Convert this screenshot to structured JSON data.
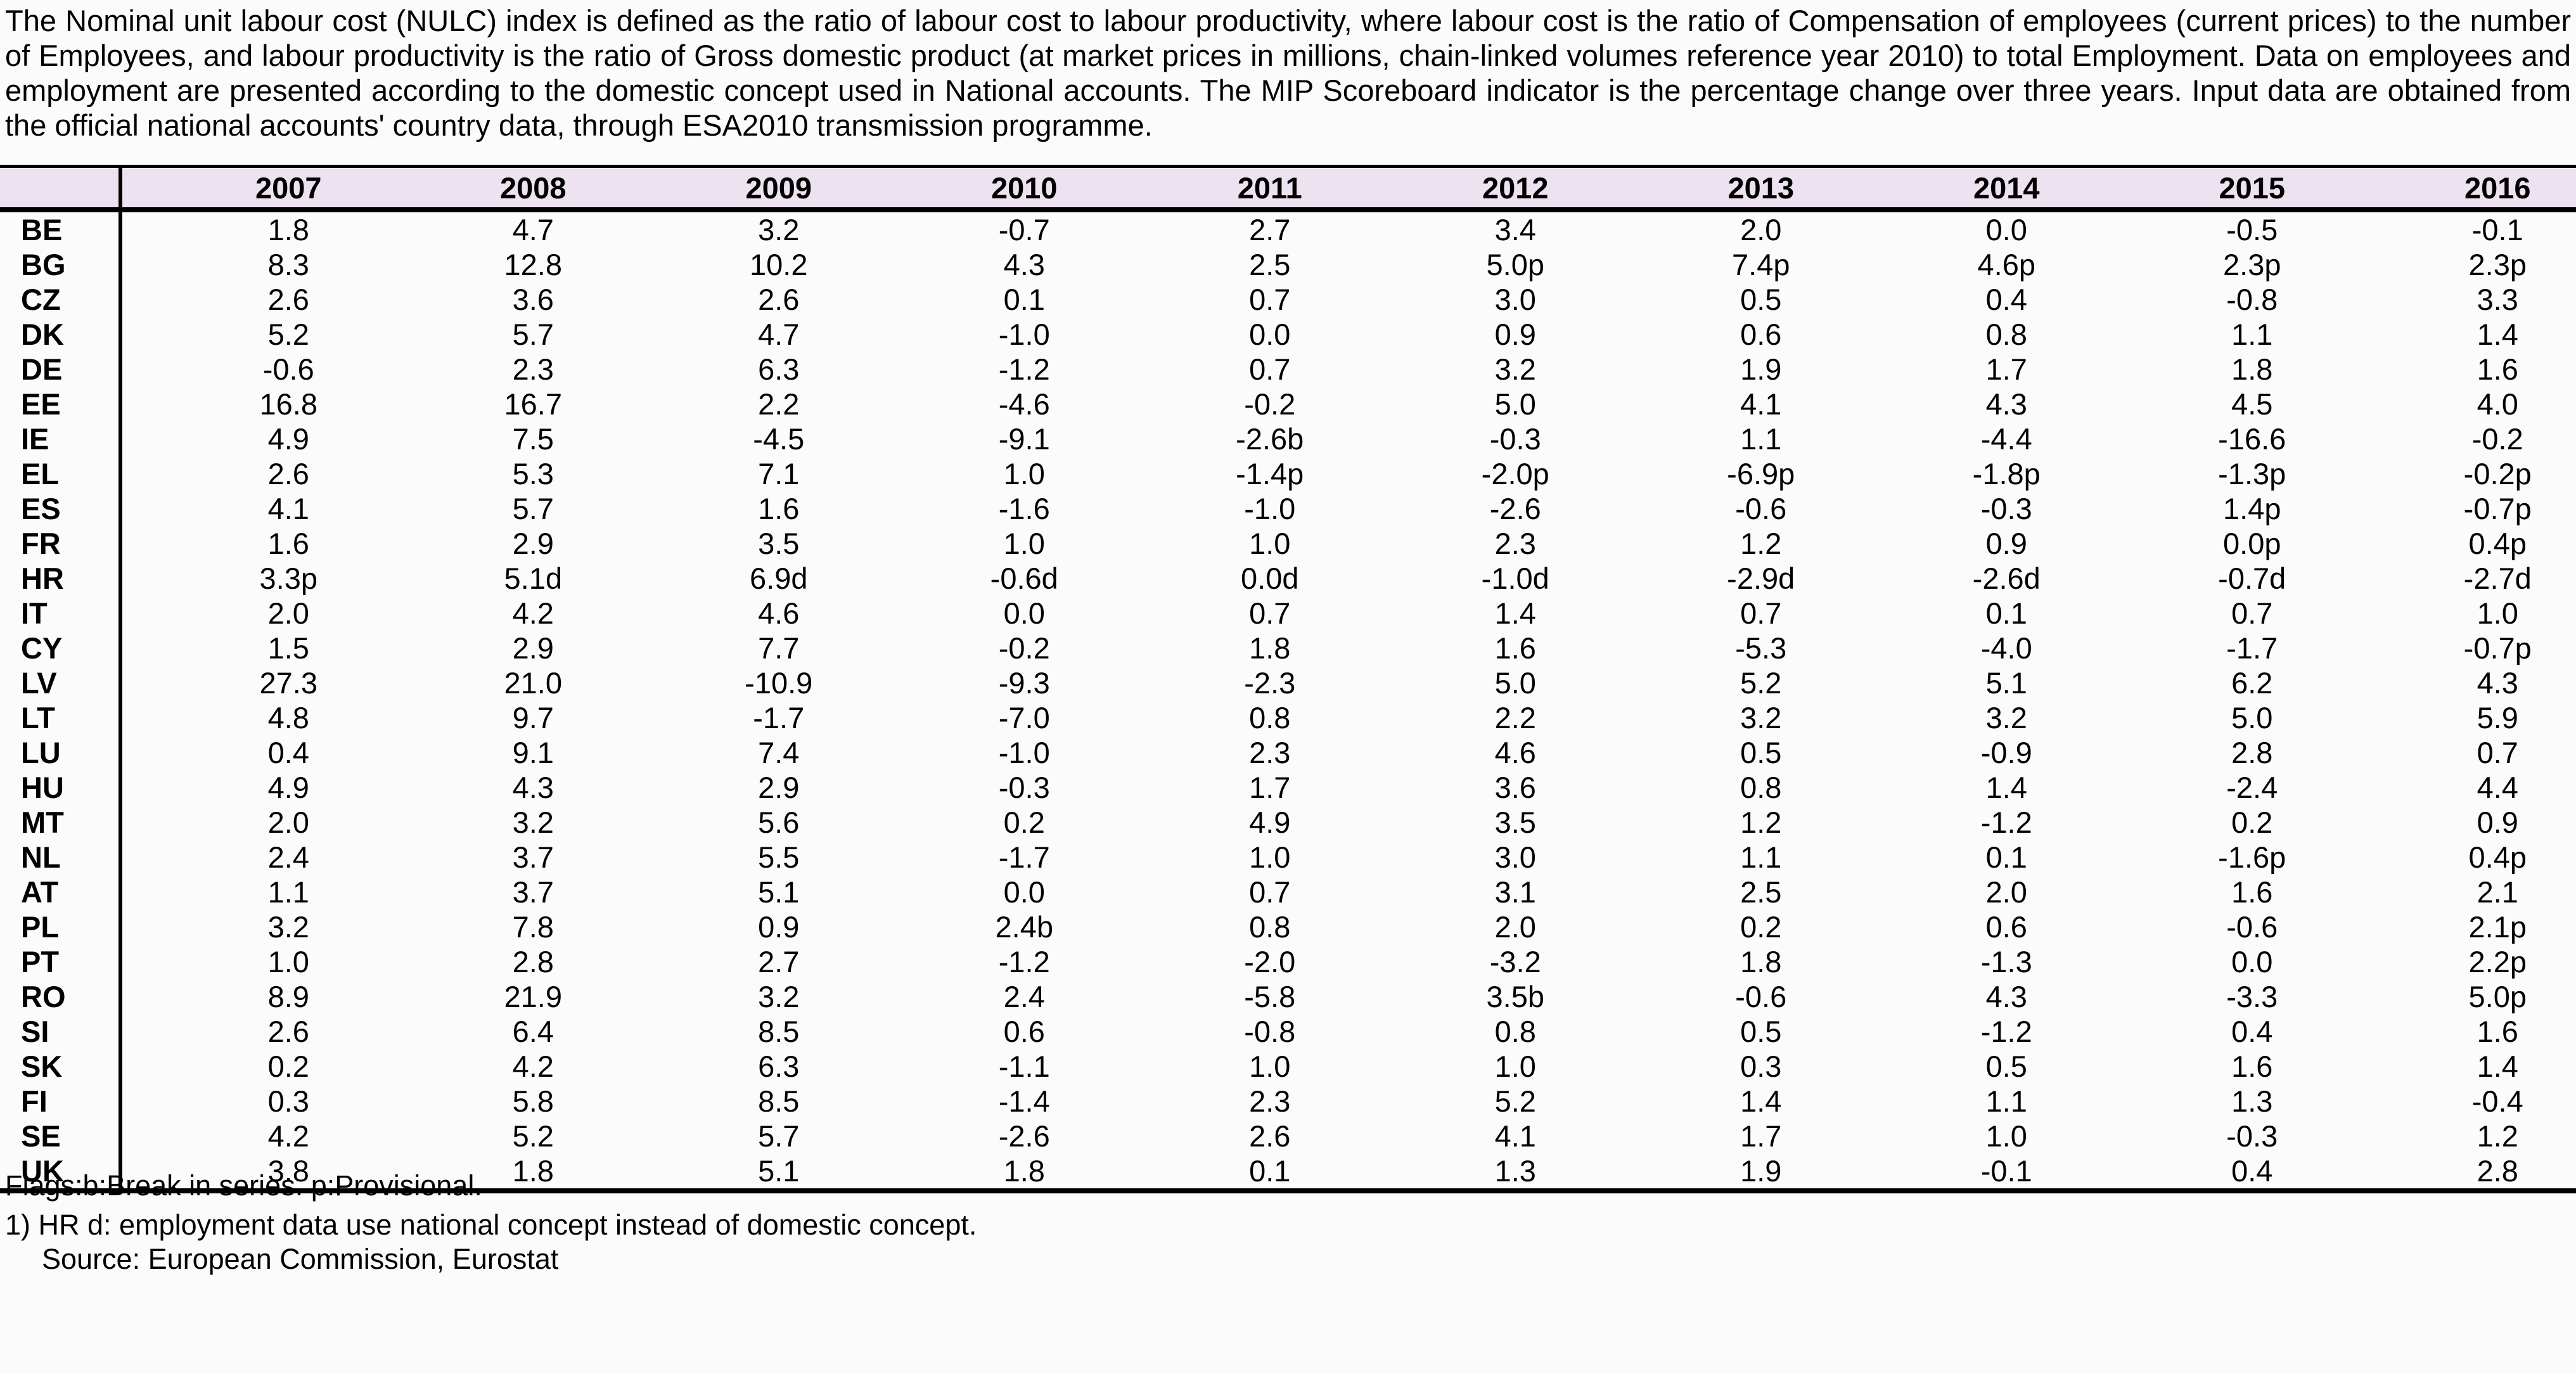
{
  "description": "The Nominal unit labour cost (NULC) index is defined as the ratio of labour cost to labour productivity, where labour cost is the ratio of Compensation of employees (current prices) to the number of Employees, and labour productivity is the ratio of Gross domestic product (at market prices in millions, chain-linked volumes reference year 2010) to total Employment. Data on employees and  employment are presented according to the domestic concept used in National accounts. The MIP Scoreboard indicator is the percentage change over three years. Input data are obtained from the official national accounts' country data, through ESA2010 transmission programme.",
  "table": {
    "years": [
      "2007",
      "2008",
      "2009",
      "2010",
      "2011",
      "2012",
      "2013",
      "2014",
      "2015",
      "2016"
    ],
    "rows": [
      {
        "code": "BE",
        "values": [
          "1.8",
          "4.7",
          "3.2",
          "-0.7",
          "2.7",
          "3.4",
          "2.0",
          "0.0",
          "-0.5",
          "-0.1"
        ]
      },
      {
        "code": "BG",
        "values": [
          "8.3",
          "12.8",
          "10.2",
          "4.3",
          "2.5",
          "5.0p",
          "7.4p",
          "4.6p",
          "2.3p",
          "2.3p"
        ]
      },
      {
        "code": "CZ",
        "values": [
          "2.6",
          "3.6",
          "2.6",
          "0.1",
          "0.7",
          "3.0",
          "0.5",
          "0.4",
          "-0.8",
          "3.3"
        ]
      },
      {
        "code": "DK",
        "values": [
          "5.2",
          "5.7",
          "4.7",
          "-1.0",
          "0.0",
          "0.9",
          "0.6",
          "0.8",
          "1.1",
          "1.4"
        ]
      },
      {
        "code": "DE",
        "values": [
          "-0.6",
          "2.3",
          "6.3",
          "-1.2",
          "0.7",
          "3.2",
          "1.9",
          "1.7",
          "1.8",
          "1.6"
        ]
      },
      {
        "code": "EE",
        "values": [
          "16.8",
          "16.7",
          "2.2",
          "-4.6",
          "-0.2",
          "5.0",
          "4.1",
          "4.3",
          "4.5",
          "4.0"
        ]
      },
      {
        "code": "IE",
        "values": [
          "4.9",
          "7.5",
          "-4.5",
          "-9.1",
          "-2.6b",
          "-0.3",
          "1.1",
          "-4.4",
          "-16.6",
          "-0.2"
        ]
      },
      {
        "code": "EL",
        "values": [
          "2.6",
          "5.3",
          "7.1",
          "1.0",
          "-1.4p",
          "-2.0p",
          "-6.9p",
          "-1.8p",
          "-1.3p",
          "-0.2p"
        ]
      },
      {
        "code": "ES",
        "values": [
          "4.1",
          "5.7",
          "1.6",
          "-1.6",
          "-1.0",
          "-2.6",
          "-0.6",
          "-0.3",
          "1.4p",
          "-0.7p"
        ]
      },
      {
        "code": "FR",
        "values": [
          "1.6",
          "2.9",
          "3.5",
          "1.0",
          "1.0",
          "2.3",
          "1.2",
          "0.9",
          "0.0p",
          "0.4p"
        ]
      },
      {
        "code": "HR",
        "values": [
          "3.3p",
          "5.1d",
          "6.9d",
          "-0.6d",
          "0.0d",
          "-1.0d",
          "-2.9d",
          "-2.6d",
          "-0.7d",
          "-2.7d"
        ]
      },
      {
        "code": "IT",
        "values": [
          "2.0",
          "4.2",
          "4.6",
          "0.0",
          "0.7",
          "1.4",
          "0.7",
          "0.1",
          "0.7",
          "1.0"
        ]
      },
      {
        "code": "CY",
        "values": [
          "1.5",
          "2.9",
          "7.7",
          "-0.2",
          "1.8",
          "1.6",
          "-5.3",
          "-4.0",
          "-1.7",
          "-0.7p"
        ]
      },
      {
        "code": "LV",
        "values": [
          "27.3",
          "21.0",
          "-10.9",
          "-9.3",
          "-2.3",
          "5.0",
          "5.2",
          "5.1",
          "6.2",
          "4.3"
        ]
      },
      {
        "code": "LT",
        "values": [
          "4.8",
          "9.7",
          "-1.7",
          "-7.0",
          "0.8",
          "2.2",
          "3.2",
          "3.2",
          "5.0",
          "5.9"
        ]
      },
      {
        "code": "LU",
        "values": [
          "0.4",
          "9.1",
          "7.4",
          "-1.0",
          "2.3",
          "4.6",
          "0.5",
          "-0.9",
          "2.8",
          "0.7"
        ]
      },
      {
        "code": "HU",
        "values": [
          "4.9",
          "4.3",
          "2.9",
          "-0.3",
          "1.7",
          "3.6",
          "0.8",
          "1.4",
          "-2.4",
          "4.4"
        ]
      },
      {
        "code": "MT",
        "values": [
          "2.0",
          "3.2",
          "5.6",
          "0.2",
          "4.9",
          "3.5",
          "1.2",
          "-1.2",
          "0.2",
          "0.9"
        ]
      },
      {
        "code": "NL",
        "values": [
          "2.4",
          "3.7",
          "5.5",
          "-1.7",
          "1.0",
          "3.0",
          "1.1",
          "0.1",
          "-1.6p",
          "0.4p"
        ]
      },
      {
        "code": "AT",
        "values": [
          "1.1",
          "3.7",
          "5.1",
          "0.0",
          "0.7",
          "3.1",
          "2.5",
          "2.0",
          "1.6",
          "2.1"
        ]
      },
      {
        "code": "PL",
        "values": [
          "3.2",
          "7.8",
          "0.9",
          "2.4b",
          "0.8",
          "2.0",
          "0.2",
          "0.6",
          "-0.6",
          "2.1p"
        ]
      },
      {
        "code": "PT",
        "values": [
          "1.0",
          "2.8",
          "2.7",
          "-1.2",
          "-2.0",
          "-3.2",
          "1.8",
          "-1.3",
          "0.0",
          "2.2p"
        ]
      },
      {
        "code": "RO",
        "values": [
          "8.9",
          "21.9",
          "3.2",
          "2.4",
          "-5.8",
          "3.5b",
          "-0.6",
          "4.3",
          "-3.3",
          "5.0p"
        ]
      },
      {
        "code": "SI",
        "values": [
          "2.6",
          "6.4",
          "8.5",
          "0.6",
          "-0.8",
          "0.8",
          "0.5",
          "-1.2",
          "0.4",
          "1.6"
        ]
      },
      {
        "code": "SK",
        "values": [
          "0.2",
          "4.2",
          "6.3",
          "-1.1",
          "1.0",
          "1.0",
          "0.3",
          "0.5",
          "1.6",
          "1.4"
        ]
      },
      {
        "code": "FI",
        "values": [
          "0.3",
          "5.8",
          "8.5",
          "-1.4",
          "2.3",
          "5.2",
          "1.4",
          "1.1",
          "1.3",
          "-0.4"
        ]
      },
      {
        "code": "SE",
        "values": [
          "4.2",
          "5.2",
          "5.7",
          "-2.6",
          "2.6",
          "4.1",
          "1.7",
          "1.0",
          "-0.3",
          "1.2"
        ]
      },
      {
        "code": "UK",
        "values": [
          "3.8",
          "1.8",
          "5.1",
          "1.8",
          "0.1",
          "1.3",
          "1.9",
          "-0.1",
          "0.4",
          "2.8"
        ]
      }
    ]
  },
  "footnotes": {
    "flags": "Flags:b:Break in series. p:Provisional.",
    "note1": "1) HR d: employment data use national concept instead of domestic concept.",
    "source": "Source: European Commission, Eurostat"
  },
  "colors": {
    "header_bg": "#ede2ef",
    "page_bg": "#fbfbfb",
    "border": "#000000"
  }
}
